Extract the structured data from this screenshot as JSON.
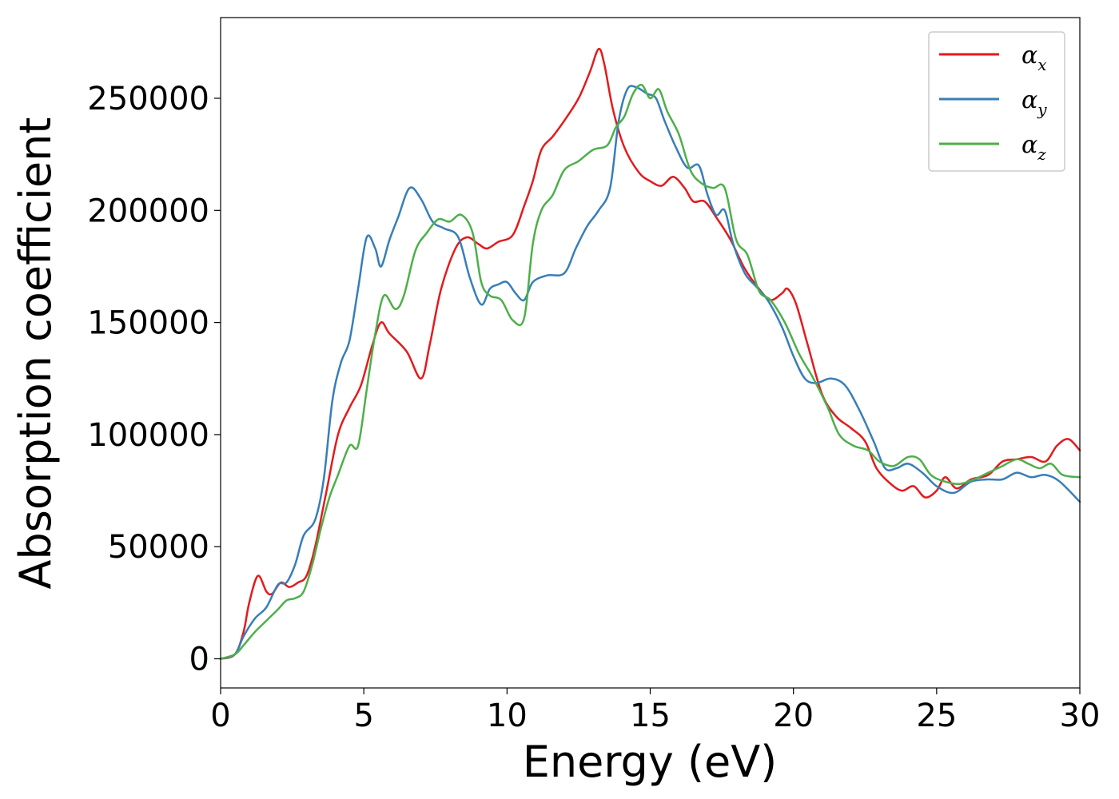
{
  "chart_data": {
    "type": "line",
    "title": "",
    "xlabel": "Energy (eV)",
    "ylabel": "Absorption coefficient",
    "xlim": [
      0,
      30
    ],
    "ylim": [
      -13000,
      286000
    ],
    "xticks": [
      0,
      5,
      10,
      15,
      20,
      25,
      30
    ],
    "yticks": [
      0,
      50000,
      100000,
      150000,
      200000,
      250000
    ],
    "grid": false,
    "legend_position": "top-right",
    "series": [
      {
        "name": "α_x",
        "legend_base": "α",
        "legend_sub": "x",
        "color": "#e41a1c",
        "points": [
          [
            0,
            0
          ],
          [
            0.5,
            2000
          ],
          [
            0.8,
            12000
          ],
          [
            1.0,
            25000
          ],
          [
            1.3,
            37000
          ],
          [
            1.6,
            30000
          ],
          [
            1.8,
            29000
          ],
          [
            2.1,
            34000
          ],
          [
            2.4,
            32000
          ],
          [
            2.7,
            34000
          ],
          [
            3.0,
            37000
          ],
          [
            3.3,
            50000
          ],
          [
            3.7,
            75000
          ],
          [
            4.1,
            100000
          ],
          [
            4.5,
            112000
          ],
          [
            4.9,
            122000
          ],
          [
            5.3,
            140000
          ],
          [
            5.6,
            150000
          ],
          [
            5.9,
            145000
          ],
          [
            6.5,
            137000
          ],
          [
            7.0,
            125000
          ],
          [
            7.3,
            140000
          ],
          [
            7.7,
            165000
          ],
          [
            8.2,
            183000
          ],
          [
            8.6,
            188000
          ],
          [
            9.0,
            185000
          ],
          [
            9.3,
            183000
          ],
          [
            9.7,
            186000
          ],
          [
            10.2,
            189000
          ],
          [
            10.6,
            202000
          ],
          [
            10.9,
            213000
          ],
          [
            11.2,
            227000
          ],
          [
            11.6,
            233000
          ],
          [
            12.0,
            240000
          ],
          [
            12.5,
            250000
          ],
          [
            12.9,
            262000
          ],
          [
            13.2,
            272000
          ],
          [
            13.4,
            265000
          ],
          [
            13.7,
            245000
          ],
          [
            14.1,
            228000
          ],
          [
            14.6,
            217000
          ],
          [
            15.0,
            213000
          ],
          [
            15.4,
            211000
          ],
          [
            15.8,
            215000
          ],
          [
            16.2,
            210000
          ],
          [
            16.5,
            204000
          ],
          [
            16.9,
            204000
          ],
          [
            17.3,
            197000
          ],
          [
            17.8,
            187000
          ],
          [
            18.3,
            174000
          ],
          [
            18.8,
            165000
          ],
          [
            19.2,
            160000
          ],
          [
            19.6,
            163000
          ],
          [
            19.8,
            165000
          ],
          [
            20.1,
            158000
          ],
          [
            20.5,
            140000
          ],
          [
            21.0,
            118000
          ],
          [
            21.5,
            108000
          ],
          [
            22.0,
            103000
          ],
          [
            22.5,
            97000
          ],
          [
            22.9,
            85000
          ],
          [
            23.4,
            78000
          ],
          [
            23.8,
            75000
          ],
          [
            24.2,
            77000
          ],
          [
            24.6,
            72000
          ],
          [
            25.0,
            75000
          ],
          [
            25.3,
            81000
          ],
          [
            25.7,
            76000
          ],
          [
            26.2,
            80000
          ],
          [
            26.8,
            82000
          ],
          [
            27.3,
            88000
          ],
          [
            27.8,
            89000
          ],
          [
            28.3,
            90000
          ],
          [
            28.8,
            88000
          ],
          [
            29.2,
            95000
          ],
          [
            29.6,
            98000
          ],
          [
            30.0,
            93000
          ]
        ]
      },
      {
        "name": "α_y",
        "legend_base": "α",
        "legend_sub": "y",
        "color": "#377eb8",
        "points": [
          [
            0,
            0
          ],
          [
            0.5,
            2000
          ],
          [
            0.8,
            10000
          ],
          [
            1.2,
            18000
          ],
          [
            1.6,
            23000
          ],
          [
            2.0,
            33000
          ],
          [
            2.3,
            34000
          ],
          [
            2.6,
            42000
          ],
          [
            2.9,
            55000
          ],
          [
            3.3,
            62000
          ],
          [
            3.6,
            80000
          ],
          [
            3.9,
            115000
          ],
          [
            4.2,
            132000
          ],
          [
            4.5,
            142000
          ],
          [
            4.8,
            165000
          ],
          [
            5.1,
            188000
          ],
          [
            5.4,
            183000
          ],
          [
            5.6,
            175000
          ],
          [
            5.9,
            187000
          ],
          [
            6.2,
            197000
          ],
          [
            6.6,
            210000
          ],
          [
            7.0,
            205000
          ],
          [
            7.4,
            195000
          ],
          [
            7.8,
            192000
          ],
          [
            8.3,
            188000
          ],
          [
            8.7,
            170000
          ],
          [
            9.1,
            158000
          ],
          [
            9.4,
            165000
          ],
          [
            9.7,
            167000
          ],
          [
            10.0,
            168000
          ],
          [
            10.3,
            163000
          ],
          [
            10.6,
            160000
          ],
          [
            10.9,
            168000
          ],
          [
            11.4,
            171000
          ],
          [
            12.0,
            172000
          ],
          [
            12.4,
            183000
          ],
          [
            12.8,
            193000
          ],
          [
            13.2,
            200000
          ],
          [
            13.6,
            210000
          ],
          [
            13.9,
            240000
          ],
          [
            14.2,
            254000
          ],
          [
            14.5,
            255000
          ],
          [
            14.9,
            252000
          ],
          [
            15.2,
            250000
          ],
          [
            15.5,
            240000
          ],
          [
            15.9,
            228000
          ],
          [
            16.3,
            219000
          ],
          [
            16.7,
            220000
          ],
          [
            17.0,
            207000
          ],
          [
            17.3,
            198000
          ],
          [
            17.6,
            200000
          ],
          [
            17.9,
            185000
          ],
          [
            18.3,
            172000
          ],
          [
            18.7,
            166000
          ],
          [
            19.1,
            160000
          ],
          [
            19.6,
            148000
          ],
          [
            20.0,
            135000
          ],
          [
            20.4,
            125000
          ],
          [
            20.8,
            123000
          ],
          [
            21.3,
            125000
          ],
          [
            21.8,
            122000
          ],
          [
            22.3,
            111000
          ],
          [
            22.8,
            97000
          ],
          [
            23.2,
            85000
          ],
          [
            23.6,
            85000
          ],
          [
            24.0,
            87000
          ],
          [
            24.5,
            83000
          ],
          [
            25.0,
            77000
          ],
          [
            25.6,
            74000
          ],
          [
            26.2,
            79000
          ],
          [
            26.8,
            80000
          ],
          [
            27.3,
            80000
          ],
          [
            27.8,
            83000
          ],
          [
            28.3,
            81000
          ],
          [
            28.8,
            82000
          ],
          [
            29.3,
            79000
          ],
          [
            30.0,
            70000
          ]
        ]
      },
      {
        "name": "α_z",
        "legend_base": "α",
        "legend_sub": "z",
        "color": "#4daf4a",
        "points": [
          [
            0,
            0
          ],
          [
            0.5,
            2000
          ],
          [
            0.8,
            6000
          ],
          [
            1.2,
            12000
          ],
          [
            1.6,
            17000
          ],
          [
            2.0,
            22000
          ],
          [
            2.3,
            26000
          ],
          [
            2.6,
            27000
          ],
          [
            2.9,
            30000
          ],
          [
            3.2,
            42000
          ],
          [
            3.5,
            58000
          ],
          [
            3.8,
            72000
          ],
          [
            4.1,
            82000
          ],
          [
            4.5,
            95000
          ],
          [
            4.8,
            95000
          ],
          [
            5.1,
            120000
          ],
          [
            5.4,
            145000
          ],
          [
            5.7,
            162000
          ],
          [
            6.1,
            156000
          ],
          [
            6.4,
            162000
          ],
          [
            6.8,
            182000
          ],
          [
            7.2,
            190000
          ],
          [
            7.6,
            196000
          ],
          [
            8.0,
            195000
          ],
          [
            8.4,
            198000
          ],
          [
            8.8,
            190000
          ],
          [
            9.1,
            168000
          ],
          [
            9.4,
            162000
          ],
          [
            9.8,
            160000
          ],
          [
            10.2,
            151000
          ],
          [
            10.6,
            152000
          ],
          [
            10.9,
            185000
          ],
          [
            11.2,
            200000
          ],
          [
            11.6,
            207000
          ],
          [
            12.0,
            218000
          ],
          [
            12.5,
            222000
          ],
          [
            13.0,
            227000
          ],
          [
            13.5,
            229000
          ],
          [
            13.8,
            237000
          ],
          [
            14.1,
            242000
          ],
          [
            14.4,
            252000
          ],
          [
            14.7,
            256000
          ],
          [
            15.0,
            250000
          ],
          [
            15.3,
            254000
          ],
          [
            15.6,
            244000
          ],
          [
            16.0,
            234000
          ],
          [
            16.4,
            218000
          ],
          [
            16.8,
            212000
          ],
          [
            17.2,
            210000
          ],
          [
            17.6,
            210000
          ],
          [
            18.0,
            187000
          ],
          [
            18.4,
            180000
          ],
          [
            18.8,
            164000
          ],
          [
            19.2,
            160000
          ],
          [
            19.7,
            150000
          ],
          [
            20.2,
            136000
          ],
          [
            20.7,
            125000
          ],
          [
            21.2,
            112000
          ],
          [
            21.6,
            100000
          ],
          [
            22.1,
            95000
          ],
          [
            22.6,
            93000
          ],
          [
            23.0,
            88000
          ],
          [
            23.5,
            86000
          ],
          [
            24.0,
            90000
          ],
          [
            24.4,
            89000
          ],
          [
            24.8,
            82000
          ],
          [
            25.3,
            79000
          ],
          [
            25.8,
            78000
          ],
          [
            26.3,
            80000
          ],
          [
            26.8,
            83000
          ],
          [
            27.3,
            86000
          ],
          [
            27.8,
            89000
          ],
          [
            28.2,
            87000
          ],
          [
            28.6,
            85000
          ],
          [
            29.0,
            87000
          ],
          [
            29.4,
            82000
          ],
          [
            30.0,
            81000
          ]
        ]
      }
    ]
  }
}
